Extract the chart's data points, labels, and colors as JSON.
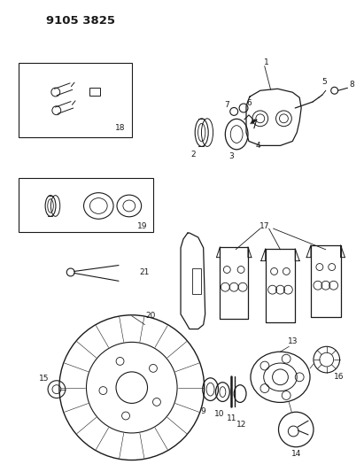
{
  "title": "9105 3825",
  "background_color": "#ffffff",
  "line_color": "#1a1a1a",
  "figsize": [
    4.11,
    5.33
  ],
  "dpi": 100,
  "label_fontsize": 6.5,
  "title_fontsize": 9.5
}
